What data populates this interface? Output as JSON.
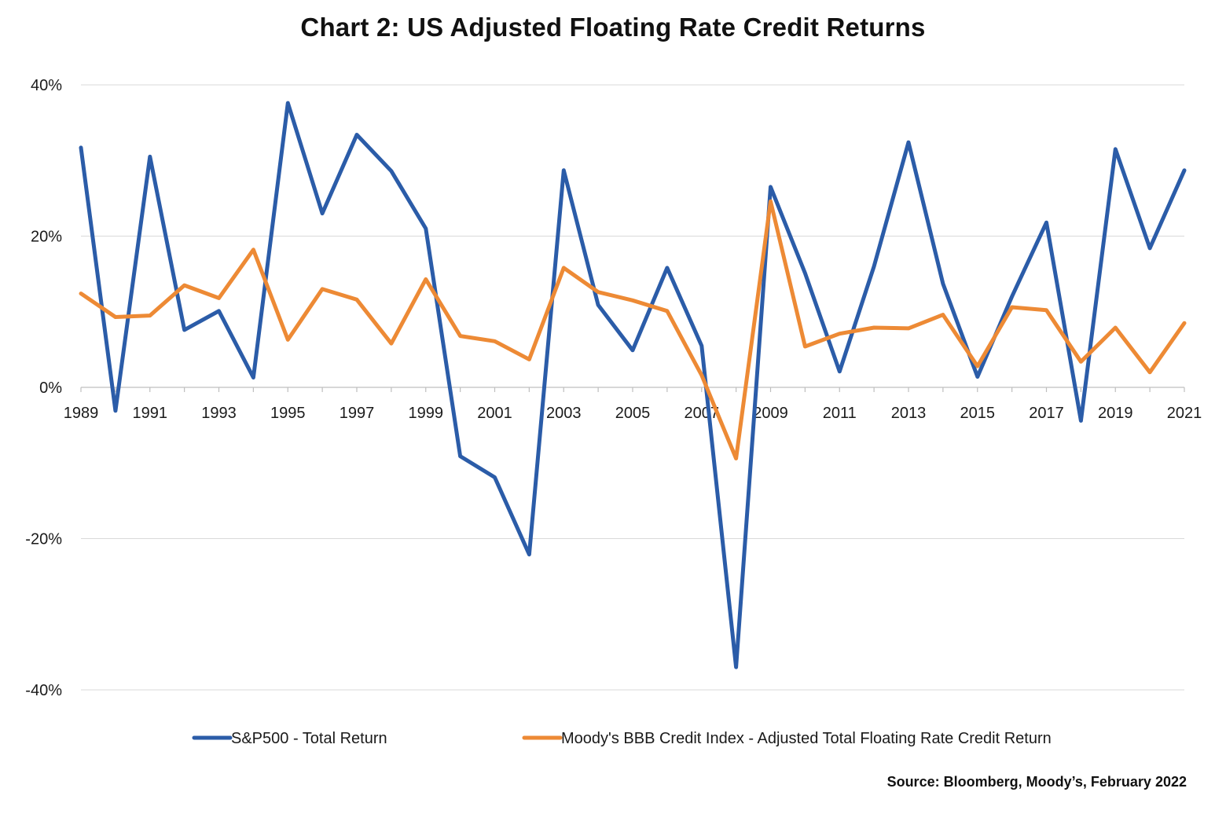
{
  "chart_data": {
    "type": "line",
    "title": "Chart 2: US Adjusted Floating Rate Credit Returns",
    "source": "Source: Bloomberg, Moody’s, February 2022",
    "x": [
      1989,
      1990,
      1991,
      1992,
      1993,
      1994,
      1995,
      1996,
      1997,
      1998,
      1999,
      2000,
      2001,
      2002,
      2003,
      2004,
      2005,
      2006,
      2007,
      2008,
      2009,
      2010,
      2011,
      2012,
      2013,
      2014,
      2015,
      2016,
      2017,
      2018,
      2019,
      2020,
      2021
    ],
    "x_tick_labels": [
      "1989",
      "1991",
      "1993",
      "1995",
      "1997",
      "1999",
      "2001",
      "2003",
      "2005",
      "2007",
      "2009",
      "2011",
      "2013",
      "2015",
      "2017",
      "2019",
      "2021"
    ],
    "ylim": [
      -40,
      40
    ],
    "y_ticks": [
      -40,
      -20,
      0,
      20,
      40
    ],
    "y_tick_labels": [
      "-40%",
      "-20%",
      "0%",
      "20%",
      "40%"
    ],
    "grid": true,
    "legend_position": "bottom",
    "series": [
      {
        "name": "S&P500 - Total Return",
        "color": "#2b5ca8",
        "values": [
          31.7,
          -3.1,
          30.5,
          7.6,
          10.1,
          1.3,
          37.6,
          23.0,
          33.4,
          28.6,
          21.0,
          -9.1,
          -11.9,
          -22.1,
          28.7,
          10.9,
          4.9,
          15.8,
          5.5,
          -37.0,
          26.5,
          15.1,
          2.1,
          16.0,
          32.4,
          13.7,
          1.4,
          12.0,
          21.8,
          -4.4,
          31.5,
          18.4,
          28.7
        ]
      },
      {
        "name": "Moody's BBB Credit Index - Adjusted Total Floating Rate Credit Return",
        "color": "#ed8a35",
        "values": [
          12.4,
          9.3,
          9.5,
          13.5,
          11.8,
          18.2,
          6.3,
          13.0,
          11.6,
          5.8,
          14.3,
          6.8,
          6.1,
          3.7,
          15.8,
          12.6,
          11.5,
          10.1,
          1.6,
          -9.4,
          24.6,
          5.4,
          7.1,
          7.9,
          7.8,
          9.6,
          2.8,
          10.6,
          10.2,
          3.4,
          7.9,
          2.0,
          8.5
        ]
      }
    ]
  }
}
